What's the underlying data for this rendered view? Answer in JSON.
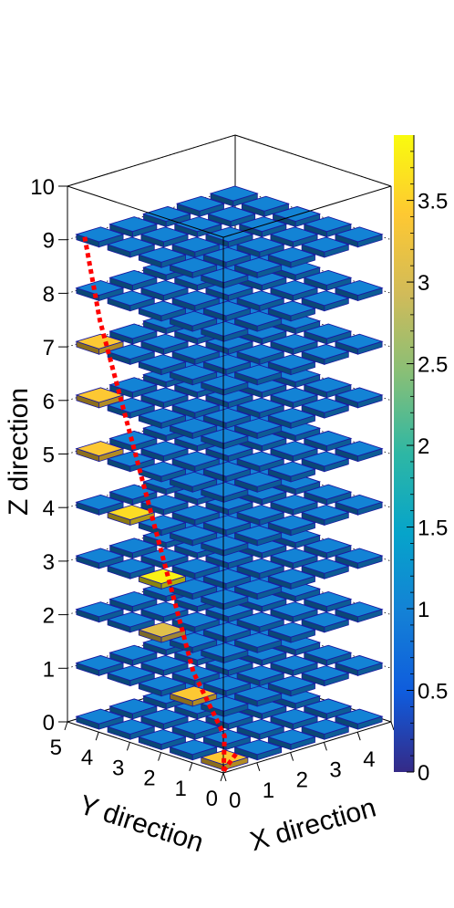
{
  "chart_data": {
    "type": "lego3d",
    "xlabel": "X direction",
    "ylabel": "Y direction",
    "zlabel": "Z direction",
    "xlim": [
      0,
      5
    ],
    "ylim": [
      0,
      5
    ],
    "zlim": [
      0,
      10
    ],
    "x_ticks": [
      "0",
      "1",
      "2",
      "3",
      "4",
      "5"
    ],
    "y_ticks": [
      "0",
      "1",
      "2",
      "3",
      "4",
      "5"
    ],
    "z_ticks": [
      "0",
      "1",
      "2",
      "3",
      "4",
      "5",
      "6",
      "7",
      "8",
      "9",
      "10"
    ],
    "grid": "layers 0-9, cells 5x5 per layer",
    "base_value": 1.0,
    "highlight_cells": [
      {
        "layer": 0,
        "x": 0,
        "y": 0,
        "value": 3.4
      },
      {
        "layer": 1,
        "x": 0,
        "y": 1,
        "value": 3.4
      },
      {
        "layer": 2,
        "x": 0,
        "y": 2,
        "value": 3.1
      },
      {
        "layer": 3,
        "x": 0,
        "y": 2,
        "value": 3.8
      },
      {
        "layer": 4,
        "x": 0,
        "y": 3,
        "value": 3.6
      },
      {
        "layer": 5,
        "x": 0,
        "y": 4,
        "value": 3.4
      },
      {
        "layer": 6,
        "x": 0,
        "y": 4,
        "value": 3.4
      },
      {
        "layer": 7,
        "x": 0,
        "y": 4,
        "value": 3.4
      },
      {
        "layer": 8,
        "x": 0,
        "y": 5,
        "value": 3.1
      },
      {
        "layer": 9,
        "x": 0,
        "y": 5,
        "value": 3.4
      }
    ],
    "track": {
      "color": "#ff0000",
      "points": [
        [
          0.1,
          0.1,
          0.0
        ],
        [
          0.5,
          0.5,
          0.5
        ],
        [
          0.5,
          1.5,
          1.5
        ],
        [
          0.5,
          2.5,
          3.5
        ],
        [
          0.5,
          3.5,
          5.5
        ],
        [
          0.5,
          4.5,
          7.5
        ],
        [
          0.5,
          5.0,
          9.0
        ]
      ],
      "branch": [
        [
          0.1,
          0.1,
          0.0
        ],
        [
          0.4,
          0.0,
          0.3
        ]
      ]
    },
    "colorbar": {
      "min": 0,
      "max": 3.9,
      "ticks": [
        "0",
        "0.5",
        "1",
        "1.5",
        "2",
        "2.5",
        "3",
        "3.5"
      ],
      "palette": [
        "#352a87",
        "#0f5cdd",
        "#1481d6",
        "#06a4ca",
        "#2eb7a4",
        "#87bf77",
        "#d1bb59",
        "#fec832",
        "#f9fb0e"
      ]
    }
  }
}
